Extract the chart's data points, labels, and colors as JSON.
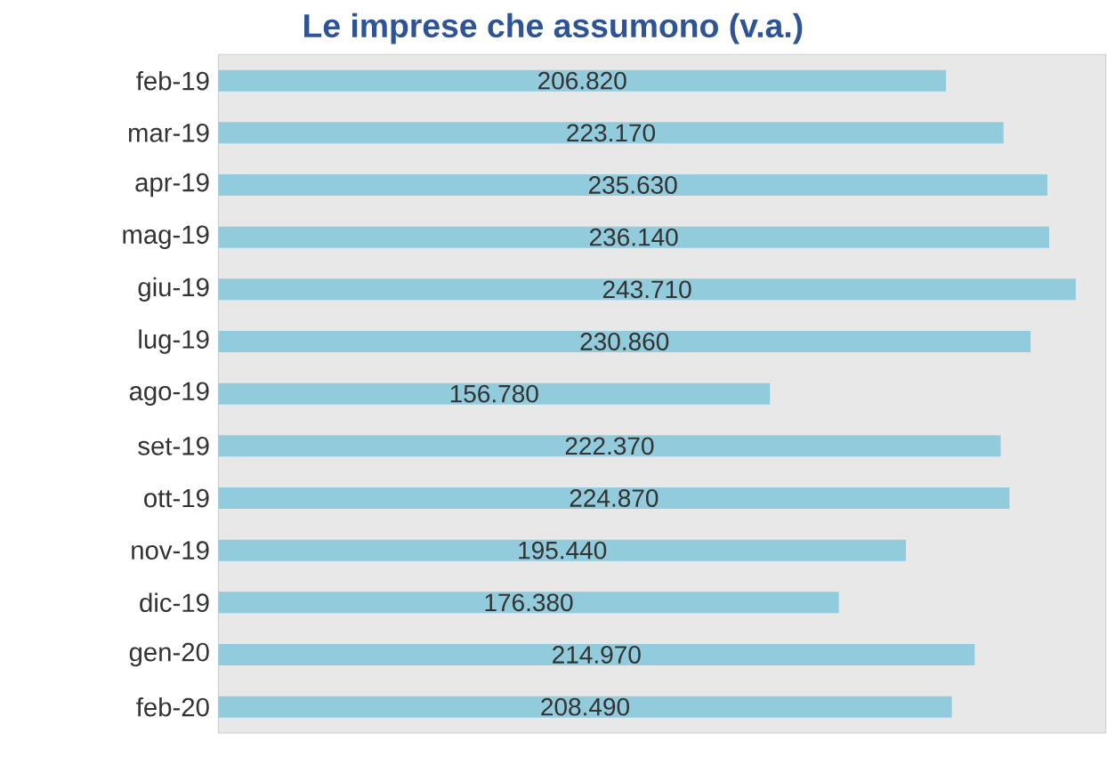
{
  "chart_data": {
    "type": "bar",
    "orientation": "horizontal",
    "relative": false,
    "title": "Le imprese che assumono (v.a.)",
    "categories": [
      "feb-19",
      "mar-19",
      "apr-19",
      "mag-19",
      "giu-19",
      "lug-19",
      "ago-19",
      "set-19",
      "ott-19",
      "nov-19",
      "dic-19",
      "gen-20",
      "feb-20"
    ],
    "values": [
      206820,
      223170,
      235630,
      236140,
      243710,
      230860,
      156780,
      222370,
      224870,
      195440,
      176380,
      214970,
      208490
    ],
    "value_labels": [
      "206.820",
      "223.170",
      "235.630",
      "236.140",
      "243.710",
      "230.860",
      "156.780",
      "222.370",
      "224.870",
      "195.440",
      "176.380",
      "214.970",
      "208.490"
    ],
    "color": "#92cbdc"
  }
}
